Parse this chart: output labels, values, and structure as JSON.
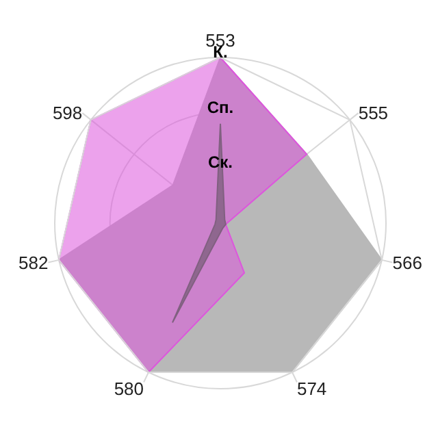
{
  "chart_data": {
    "type": "radar",
    "categories": [
      "553",
      "555",
      "566",
      "574",
      "580",
      "582",
      "598"
    ],
    "ylim": [
      0,
      3
    ],
    "yticks": [
      {
        "value": 1,
        "label": "Ск."
      },
      {
        "value": 2,
        "label": "Сп."
      },
      {
        "value": 3,
        "label": "К."
      }
    ],
    "grid": true,
    "legend": false,
    "series": [
      {
        "color": "#b8b8b8",
        "values": [
          3,
          2,
          3,
          3,
          3,
          3,
          1.1
        ]
      },
      {
        "color": "#dd55dd",
        "values": [
          3,
          2,
          0.1,
          1,
          3,
          3,
          3
        ]
      },
      {
        "color": "#806080",
        "values": [
          1.8,
          0.1,
          0.1,
          0.1,
          2,
          0.1,
          0.1
        ]
      }
    ]
  }
}
